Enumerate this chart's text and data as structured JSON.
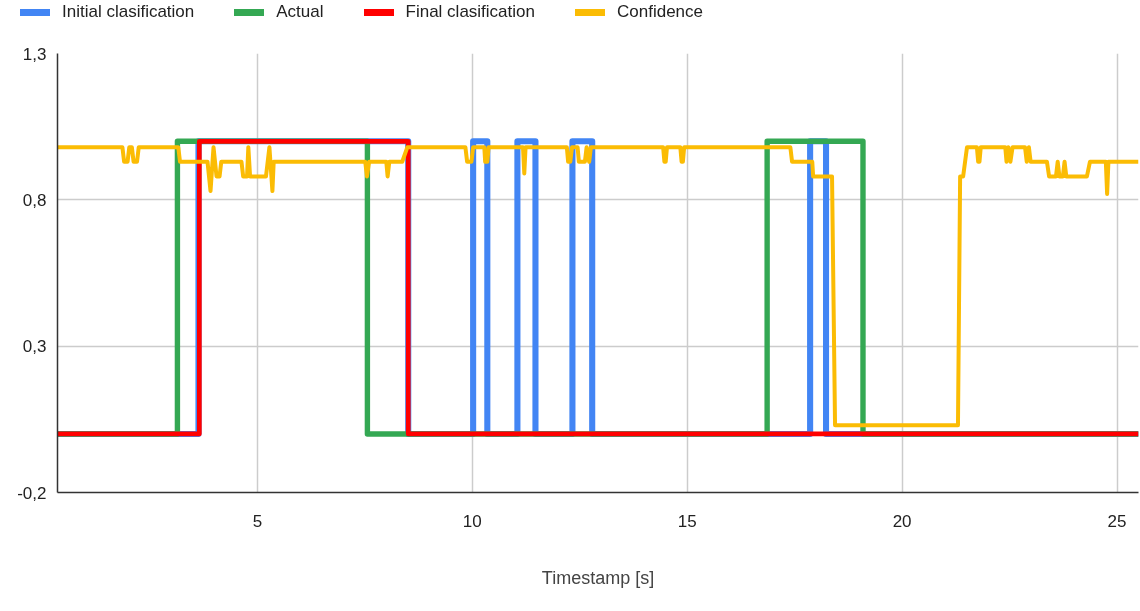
{
  "chart_data": {
    "type": "line",
    "xlabel": "Timestamp [s]",
    "legend": "top",
    "grid": true,
    "line_style": "solid",
    "marker": "none",
    "xlim": [
      0.35,
      25.5
    ],
    "xticks": [
      5,
      10,
      15,
      20,
      25
    ],
    "ylim": [
      -0.2,
      1.3
    ],
    "yticks": [
      {
        "value": -0.2,
        "label": "-0,2"
      },
      {
        "value": 0.3,
        "label": "0,3"
      },
      {
        "value": 0.8,
        "label": "0,8"
      },
      {
        "value": 1.3,
        "label": "1,3"
      }
    ],
    "series": [
      {
        "name": "Initial clasification",
        "color": "#4285f4",
        "x": [
          0.35,
          3.63,
          3.63,
          8.51,
          8.51,
          10.02,
          10.02,
          10.35,
          10.35,
          11.05,
          11.05,
          11.47,
          11.47,
          12.33,
          12.33,
          12.79,
          12.79,
          17.86,
          17.86,
          18.23,
          18.23,
          25.5
        ],
        "values": [
          0,
          0,
          1,
          1,
          0,
          0,
          1,
          1,
          0,
          0,
          1,
          1,
          0,
          0,
          1,
          1,
          0,
          0,
          1,
          1,
          0,
          0
        ]
      },
      {
        "name": "Actual",
        "color": "#34a853",
        "x": [
          0.35,
          3.14,
          3.14,
          7.56,
          7.56,
          16.86,
          16.86,
          19.09,
          19.09,
          25.5
        ],
        "values": [
          0,
          0,
          1,
          1,
          0,
          0,
          1,
          1,
          0,
          0
        ]
      },
      {
        "name": "Final clasification",
        "color": "#ff0000",
        "x": [
          0.35,
          3.65,
          3.65,
          8.51,
          8.51,
          25.5
        ],
        "values": [
          0,
          0,
          1,
          1,
          0,
          0
        ]
      },
      {
        "name": "Confidence",
        "color": "#fbbc04",
        "x": [
          0.35,
          1.86,
          1.9,
          1.98,
          2.02,
          2.08,
          2.12,
          2.2,
          2.24,
          3.16,
          3.2,
          3.84,
          3.91,
          3.98,
          4.05,
          4.12,
          4.16,
          4.63,
          4.67,
          4.76,
          4.79,
          4.83,
          5.1,
          5.2,
          5.28,
          5.35,
          5.38,
          7.51,
          7.55,
          7.6,
          8.0,
          8.03,
          8.07,
          8.37,
          8.49,
          9.84,
          9.88,
          9.98,
          10.02,
          10.28,
          10.3,
          10.35,
          10.38,
          11.18,
          11.21,
          11.24,
          12.2,
          12.23,
          12.28,
          12.32,
          12.45,
          12.48,
          12.62,
          12.66,
          12.72,
          12.76,
          14.44,
          14.47,
          14.5,
          14.53,
          14.84,
          14.87,
          14.9,
          14.93,
          17.4,
          17.44,
          17.91,
          17.93,
          18.37,
          18.44,
          21.3,
          21.35,
          21.42,
          21.51,
          21.74,
          21.77,
          21.8,
          21.83,
          22.4,
          22.43,
          22.47,
          22.52,
          22.57,
          22.86,
          22.9,
          22.95,
          22.99,
          23.37,
          23.42,
          23.58,
          23.62,
          23.66,
          23.74,
          23.78,
          23.82,
          24.3,
          24.37,
          24.74,
          24.77,
          24.8,
          25.5
        ],
        "values": [
          0.98,
          0.98,
          0.93,
          0.93,
          0.98,
          0.98,
          0.93,
          0.93,
          0.98,
          0.98,
          0.93,
          0.93,
          0.83,
          0.98,
          0.88,
          0.88,
          0.93,
          0.93,
          0.88,
          0.88,
          0.98,
          0.88,
          0.88,
          0.88,
          0.98,
          0.83,
          0.93,
          0.93,
          0.88,
          0.93,
          0.93,
          0.88,
          0.93,
          0.93,
          0.98,
          0.98,
          0.93,
          0.93,
          0.98,
          0.98,
          0.93,
          0.93,
          0.98,
          0.98,
          0.89,
          0.98,
          0.98,
          0.93,
          0.93,
          0.98,
          0.98,
          0.93,
          0.93,
          0.98,
          0.93,
          0.98,
          0.98,
          0.93,
          0.93,
          0.98,
          0.98,
          0.93,
          0.93,
          0.98,
          0.98,
          0.93,
          0.93,
          0.88,
          0.88,
          0.03,
          0.03,
          0.88,
          0.88,
          0.98,
          0.98,
          0.93,
          0.93,
          0.98,
          0.98,
          0.93,
          0.98,
          0.93,
          0.98,
          0.98,
          0.93,
          0.98,
          0.93,
          0.93,
          0.88,
          0.88,
          0.93,
          0.88,
          0.88,
          0.93,
          0.88,
          0.88,
          0.93,
          0.93,
          0.82,
          0.93,
          0.93
        ]
      }
    ]
  }
}
